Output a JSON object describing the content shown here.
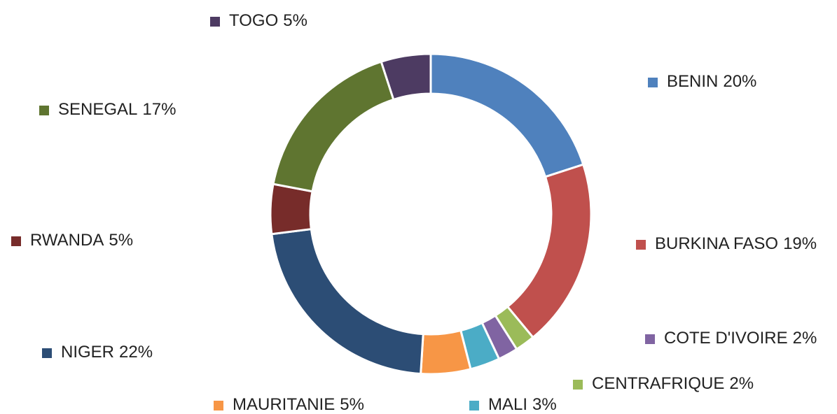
{
  "chart_data": {
    "type": "donut",
    "categories": [
      "BENIN",
      "BURKINA FASO",
      "CENTRAFRIQUE",
      "COTE D'IVOIRE",
      "MALI",
      "MAURITANIE",
      "NIGER",
      "RWANDA",
      "SENEGAL",
      "TOGO"
    ],
    "values": [
      20,
      19,
      2,
      2,
      3,
      5,
      22,
      5,
      17,
      5
    ],
    "value_labels": [
      "20%",
      "19%",
      "2%",
      "2%",
      "3%",
      "5%",
      "22%",
      "5%",
      "17%",
      "5%"
    ],
    "colors": [
      "#4f81bd",
      "#c0504d",
      "#9bbb59",
      "#8064a2",
      "#4bacc6",
      "#f79646",
      "#2c4d75",
      "#772c2a",
      "#5f7530",
      "#4d3b62"
    ],
    "legend": "around"
  }
}
